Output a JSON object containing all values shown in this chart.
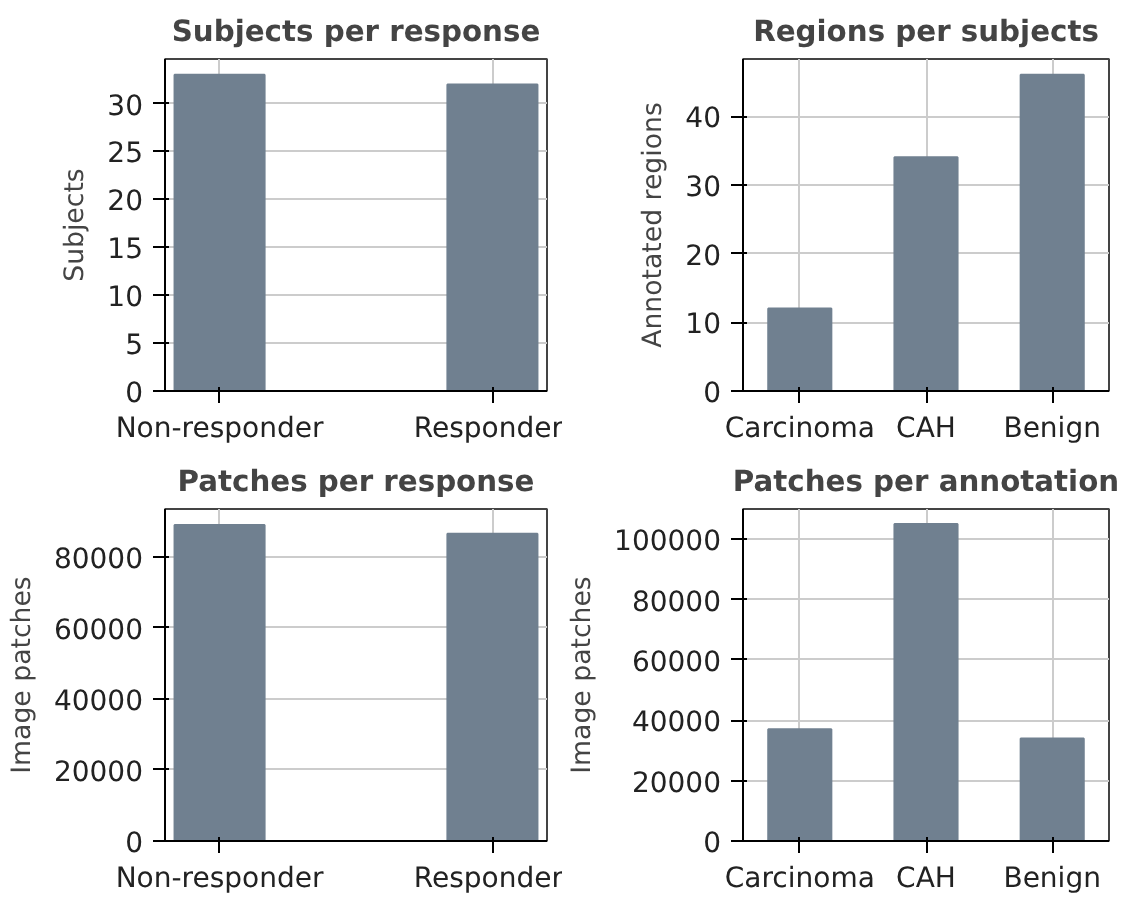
{
  "chart_data": [
    {
      "type": "bar",
      "title": "Subjects per response",
      "ylabel": "Subjects",
      "categories": [
        "Non-responder",
        "Responder"
      ],
      "values": [
        33,
        32
      ],
      "color": "#708090",
      "ylim": [
        0,
        34.65
      ],
      "yticks": [
        0,
        5,
        10,
        15,
        20,
        25,
        30
      ],
      "grid": true
    },
    {
      "type": "bar",
      "title": "Regions per subjects",
      "ylabel": "Annotated regions",
      "categories": [
        "Carcinoma",
        "CAH",
        "Benign"
      ],
      "values": [
        12,
        34,
        46
      ],
      "color": "#708090",
      "ylim": [
        0,
        48.3
      ],
      "yticks": [
        0,
        10,
        20,
        30,
        40
      ],
      "grid": true
    },
    {
      "type": "bar",
      "title": "Patches per response",
      "ylabel": "Image patches",
      "categories": [
        "Non-responder",
        "Responder"
      ],
      "values": [
        89000,
        86500
      ],
      "color": "#708090",
      "ylim": [
        0,
        93500
      ],
      "yticks": [
        0,
        20000,
        40000,
        60000,
        80000
      ],
      "grid": true
    },
    {
      "type": "bar",
      "title": "Patches per annotation",
      "ylabel": "Image patches",
      "categories": [
        "Carcinoma",
        "CAH",
        "Benign"
      ],
      "values": [
        37000,
        105000,
        34000
      ],
      "color": "#708090",
      "ylim": [
        0,
        110000
      ],
      "yticks": [
        0,
        20000,
        40000,
        60000,
        80000,
        100000
      ],
      "grid": true
    }
  ]
}
